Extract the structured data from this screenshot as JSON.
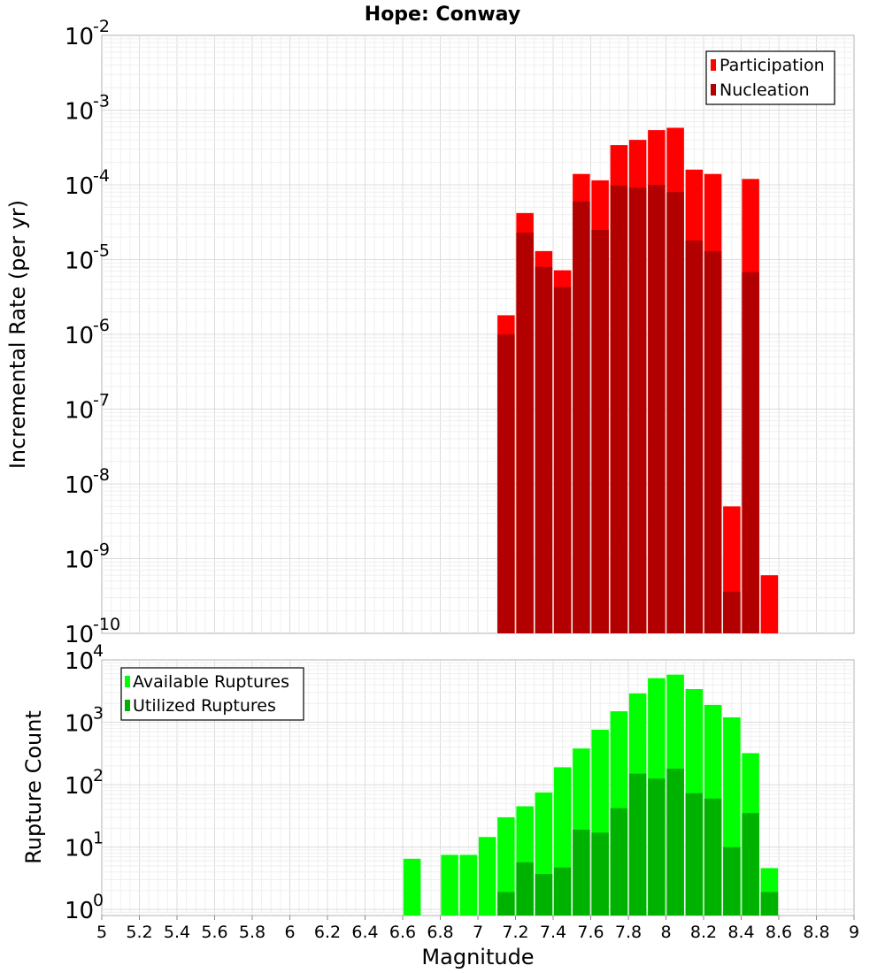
{
  "chart_data": [
    {
      "type": "bar",
      "title": "Hope: Conway",
      "xlabel": "",
      "ylabel": "Incremental Rate (per yr)",
      "xlim": [
        5,
        9
      ],
      "ylim": [
        1e-10,
        0.01
      ],
      "yscale": "log",
      "grid": true,
      "legend": "top-right",
      "y_tick_exponents": [
        -10,
        -9,
        -8,
        -7,
        -6,
        -5,
        -4,
        -3,
        -2
      ],
      "x": [
        7.15,
        7.25,
        7.35,
        7.45,
        7.55,
        7.65,
        7.75,
        7.85,
        7.95,
        8.05,
        8.15,
        8.25,
        8.35,
        8.45,
        8.55
      ],
      "series": [
        {
          "name": "Participation",
          "color": "#ff0000",
          "values": [
            1.8e-06,
            4.2e-05,
            1.3e-05,
            7.2e-06,
            0.00014,
            0.000115,
            0.00034,
            0.0004,
            0.00054,
            0.00058,
            0.00016,
            0.00014,
            5e-09,
            0.00012,
            6e-10
          ]
        },
        {
          "name": "Nucleation",
          "color": "#b20000",
          "values": [
            1e-06,
            2.3e-05,
            8e-06,
            4.3e-06,
            6e-05,
            2.5e-05,
            9.8e-05,
            9.2e-05,
            0.0001,
            8e-05,
            1.8e-05,
            1.3e-05,
            3.6e-10,
            6.8e-06,
            null
          ]
        }
      ]
    },
    {
      "type": "bar",
      "title": "",
      "xlabel": "Magnitude",
      "ylabel": "Rupture Count",
      "xlim": [
        5,
        9
      ],
      "ylim": [
        0.8,
        10000
      ],
      "yscale": "log",
      "grid": true,
      "legend": "top-left",
      "y_tick_exponents": [
        0,
        1,
        2,
        3,
        4
      ],
      "x_ticks": [
        "5",
        "5.2",
        "5.4",
        "5.6",
        "5.8",
        "6",
        "6.2",
        "6.4",
        "6.6",
        "6.8",
        "7",
        "7.2",
        "7.4",
        "7.6",
        "7.8",
        "8",
        "8.2",
        "8.4",
        "8.6",
        "8.8",
        "9"
      ],
      "x": [
        6.65,
        6.85,
        6.95,
        7.05,
        7.15,
        7.25,
        7.35,
        7.45,
        7.55,
        7.65,
        7.75,
        7.85,
        7.95,
        8.05,
        8.15,
        8.25,
        8.35,
        8.45,
        8.55
      ],
      "series": [
        {
          "name": "Available Ruptures",
          "color": "#00ff00",
          "values": [
            6.5,
            7.5,
            7.5,
            14.5,
            30,
            45,
            75,
            190,
            380,
            760,
            1500,
            2900,
            5100,
            5800,
            3400,
            1900,
            1200,
            320,
            4.6
          ]
        },
        {
          "name": "Utilized Ruptures",
          "color": "#00b200",
          "values": [
            null,
            null,
            null,
            null,
            1.9,
            5.7,
            3.7,
            4.7,
            19,
            17,
            42,
            150,
            125,
            180,
            73,
            60,
            10,
            35,
            1.9
          ]
        }
      ]
    }
  ]
}
